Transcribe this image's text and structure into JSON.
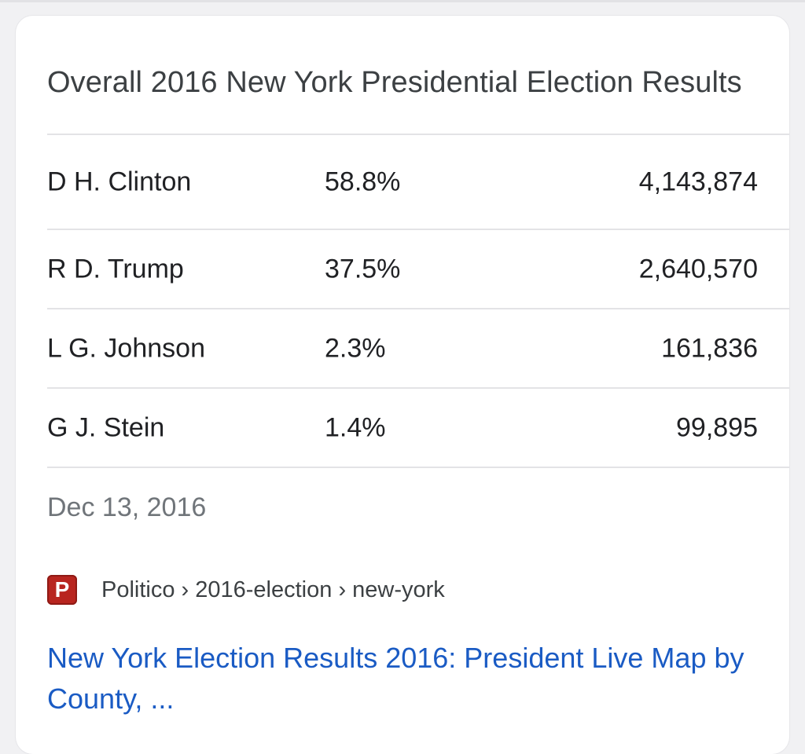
{
  "card": {
    "title": "Overall 2016 New York Presidential Election Results",
    "results": [
      {
        "candidate": "D H. Clinton",
        "percent": "58.8%",
        "votes": "4,143,874"
      },
      {
        "candidate": "R D. Trump",
        "percent": "37.5%",
        "votes": "2,640,570"
      },
      {
        "candidate": "L G. Johnson",
        "percent": "2.3%",
        "votes": "161,836"
      },
      {
        "candidate": "G J. Stein",
        "percent": "1.4%",
        "votes": "99,895"
      }
    ],
    "date": "Dec 13, 2016",
    "source": {
      "favicon_letter": "P",
      "breadcrumb": "Politico › 2016-election › new-york"
    },
    "link_title": "New York Election Results 2016: President Live Map by County, ..."
  },
  "colors": {
    "link": "#1a5bc4",
    "favicon_bg": "#b8251f",
    "text_primary": "#202124",
    "text_secondary": "#70757a"
  }
}
